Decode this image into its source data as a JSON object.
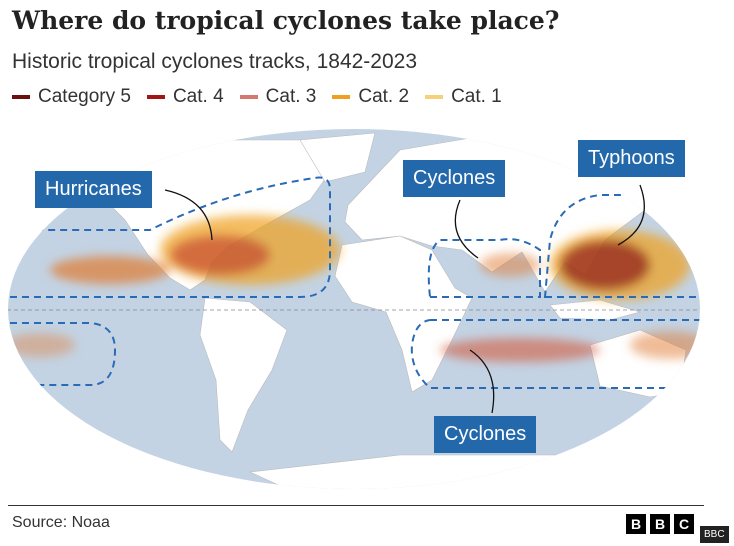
{
  "title": "Where do tropical cyclones take place?",
  "subtitle": "Historic tropical cyclones tracks, 1842-2023",
  "legend": [
    {
      "label": "Category 5",
      "color": "#6b0f0f"
    },
    {
      "label": "Cat. 4",
      "color": "#a31515"
    },
    {
      "label": "Cat. 3",
      "color": "#d27a6e"
    },
    {
      "label": "Cat. 2",
      "color": "#f0a020"
    },
    {
      "label": "Cat. 1",
      "color": "#f5d27a"
    }
  ],
  "map": {
    "ocean_color": "#c3d3e4",
    "land_color": "#ffffff",
    "region_line_color": "#2a6bb5",
    "labels": {
      "hurricanes": "Hurricanes",
      "cyclones_north": "Cyclones",
      "typhoons": "Typhoons",
      "cyclones_south": "Cyclones"
    }
  },
  "source": "Source: Noaa",
  "logo": {
    "letters": [
      "B",
      "B",
      "C"
    ],
    "tooltip": "BBC"
  }
}
